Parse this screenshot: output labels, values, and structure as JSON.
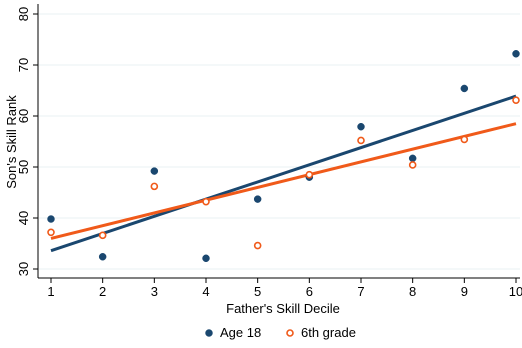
{
  "chart_data": {
    "type": "scatter",
    "xlabel": "Father's Skill Decile",
    "ylabel": "Son's Skill Rank",
    "xlim": [
      1,
      10
    ],
    "ylim": [
      30,
      80
    ],
    "x_ticks": [
      1,
      2,
      3,
      4,
      5,
      6,
      7,
      8,
      9,
      10
    ],
    "y_ticks": [
      30,
      40,
      50,
      60,
      70,
      80
    ],
    "grid": true,
    "legend": "bottom",
    "series": [
      {
        "name": "Age 18",
        "marker": "filled-circle",
        "color": "#1a476f",
        "x": [
          1,
          2,
          3,
          4,
          5,
          6,
          7,
          8,
          9,
          10
        ],
        "y": [
          39.8,
          32.4,
          49.2,
          32.1,
          43.7,
          48.0,
          57.9,
          51.7,
          65.4,
          72.2
        ],
        "fit": {
          "x": [
            1,
            10
          ],
          "y": [
            33.6,
            63.9
          ]
        }
      },
      {
        "name": "6th grade",
        "marker": "hollow-circle",
        "color": "#f05a1a",
        "x": [
          1,
          2,
          3,
          4,
          5,
          6,
          7,
          8,
          9,
          10
        ],
        "y": [
          37.2,
          36.6,
          46.2,
          43.2,
          34.6,
          48.5,
          55.2,
          50.4,
          55.4,
          63.1
        ],
        "fit": {
          "x": [
            1,
            10
          ],
          "y": [
            36.0,
            58.5
          ]
        }
      }
    ]
  }
}
